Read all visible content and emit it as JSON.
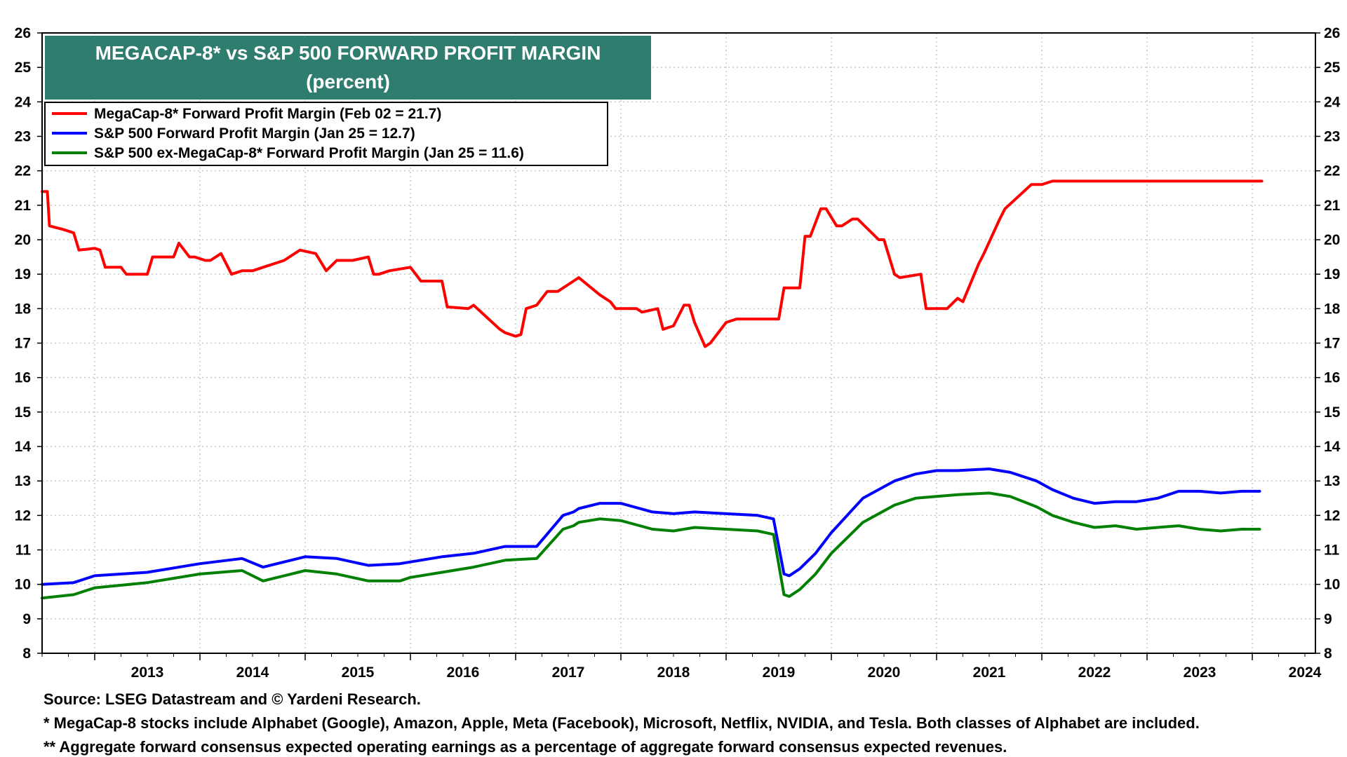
{
  "chart_data": {
    "type": "line",
    "title": "MEGACAP-8* vs S&P 500 FORWARD PROFIT MARGIN",
    "subtitle": "(percent)",
    "ylim": [
      8,
      26
    ],
    "yticks": [
      8,
      9,
      10,
      11,
      12,
      13,
      14,
      15,
      16,
      17,
      18,
      19,
      20,
      21,
      22,
      23,
      24,
      25,
      26
    ],
    "xlim": [
      2012.5,
      2024.6
    ],
    "xtick_labels": [
      "2013",
      "2014",
      "2015",
      "2016",
      "2017",
      "2018",
      "2019",
      "2020",
      "2021",
      "2022",
      "2023",
      "2024"
    ],
    "grid": true,
    "legend_position": "top-left",
    "series": [
      {
        "name": "MegaCap-8* Forward Profit Margin (Feb 02 = 21.7)",
        "color": "#ff0000",
        "x": [
          2012.5,
          2012.55,
          2012.57,
          2012.7,
          2012.8,
          2012.85,
          2013.0,
          2013.05,
          2013.1,
          2013.25,
          2013.3,
          2013.5,
          2013.55,
          2013.75,
          2013.8,
          2013.9,
          2013.95,
          2014.05,
          2014.1,
          2014.2,
          2014.3,
          2014.4,
          2014.45,
          2014.5,
          2014.6,
          2014.8,
          2014.95,
          2015.1,
          2015.2,
          2015.3,
          2015.4,
          2015.45,
          2015.6,
          2015.65,
          2015.7,
          2015.8,
          2016.0,
          2016.1,
          2016.15,
          2016.3,
          2016.35,
          2016.55,
          2016.6,
          2016.85,
          2016.9,
          2017.0,
          2017.05,
          2017.1,
          2017.2,
          2017.3,
          2017.4,
          2017.55,
          2017.6,
          2017.8,
          2017.9,
          2017.95,
          2018.0,
          2018.15,
          2018.2,
          2018.35,
          2018.4,
          2018.5,
          2018.6,
          2018.65,
          2018.7,
          2018.8,
          2018.85,
          2019.0,
          2019.1,
          2019.3,
          2019.5,
          2019.55,
          2019.7,
          2019.75,
          2019.8,
          2019.9,
          2019.95,
          2020.05,
          2020.1,
          2020.2,
          2020.25,
          2020.45,
          2020.5,
          2020.6,
          2020.65,
          2020.85,
          2020.9,
          2021.05,
          2021.1,
          2021.2,
          2021.25,
          2021.4,
          2021.45,
          2021.6,
          2021.65,
          2021.9,
          2022.0,
          2022.1,
          2022.2,
          2022.25,
          2022.4,
          2022.45,
          2022.55,
          2022.75,
          2022.85,
          2022.95,
          2023.0,
          2023.05,
          2023.15,
          2023.25,
          2023.35,
          2023.4,
          2023.55,
          2023.65,
          2023.75,
          2023.82,
          2023.9,
          2024.0,
          2024.09
        ],
        "y": [
          21.4,
          21.4,
          20.4,
          20.3,
          20.2,
          19.7,
          19.75,
          19.7,
          19.2,
          19.2,
          19.0,
          19.0,
          19.5,
          19.5,
          19.9,
          19.5,
          19.5,
          19.4,
          19.4,
          19.6,
          19.0,
          19.1,
          19.1,
          19.1,
          19.2,
          19.4,
          19.7,
          19.6,
          19.1,
          19.4,
          19.4,
          19.4,
          19.5,
          19.0,
          19.0,
          19.1,
          19.2,
          18.8,
          18.8,
          18.8,
          18.05,
          18.0,
          18.1,
          17.4,
          17.3,
          17.2,
          17.25,
          18.0,
          18.1,
          18.5,
          18.5,
          18.8,
          18.9,
          18.4,
          18.2,
          18.0,
          18.0,
          18.0,
          17.9,
          18.0,
          17.4,
          17.5,
          18.1,
          18.1,
          17.6,
          16.9,
          17.0,
          17.6,
          17.7,
          17.7,
          17.7,
          18.6,
          18.6,
          20.1,
          20.1,
          20.9,
          20.9,
          20.4,
          20.4,
          20.6,
          20.6,
          20.0,
          20.0,
          19.0,
          18.9,
          19.0,
          18.0,
          18.0,
          18.0,
          18.3,
          18.2,
          19.3,
          19.6,
          20.6,
          20.9,
          21.6,
          21.6,
          21.7,
          21.7,
          21.7,
          21.7,
          21.7,
          21.7,
          21.7,
          21.7,
          21.7,
          21.7,
          21.7,
          21.7,
          21.7,
          21.7,
          21.7,
          21.7,
          21.7,
          21.7,
          21.7,
          21.7,
          21.7,
          21.7
        ]
      },
      {
        "name": "S&P 500 Forward Profit Margin (Jan 25 = 12.7)",
        "color": "#0000ff",
        "x": [
          2012.5,
          2012.8,
          2013.0,
          2013.5,
          2014.0,
          2014.4,
          2014.6,
          2014.8,
          2015.0,
          2015.3,
          2015.6,
          2015.9,
          2016.0,
          2016.3,
          2016.6,
          2016.9,
          2017.2,
          2017.45,
          2017.55,
          2017.6,
          2017.8,
          2018.0,
          2018.3,
          2018.5,
          2018.7,
          2019.0,
          2019.3,
          2019.45,
          2019.55,
          2019.6,
          2019.7,
          2019.85,
          2020.0,
          2020.3,
          2020.6,
          2020.8,
          2021.0,
          2021.2,
          2021.5,
          2021.7,
          2021.95,
          2022.1,
          2022.3,
          2022.5,
          2022.7,
          2022.9,
          2023.1,
          2023.3,
          2023.5,
          2023.7,
          2023.9,
          2024.07
        ],
        "y": [
          10.0,
          10.05,
          10.25,
          10.35,
          10.6,
          10.75,
          10.5,
          10.65,
          10.8,
          10.75,
          10.55,
          10.6,
          10.65,
          10.8,
          10.9,
          11.1,
          11.1,
          12.0,
          12.1,
          12.2,
          12.35,
          12.35,
          12.1,
          12.05,
          12.1,
          12.05,
          12.0,
          11.9,
          10.3,
          10.25,
          10.45,
          10.9,
          11.5,
          12.5,
          13.0,
          13.2,
          13.3,
          13.3,
          13.35,
          13.25,
          13.0,
          12.75,
          12.5,
          12.35,
          12.4,
          12.4,
          12.5,
          12.7,
          12.7,
          12.65,
          12.7,
          12.7
        ]
      },
      {
        "name": "S&P 500 ex-MegaCap-8* Forward Profit Margin (Jan 25 = 11.6)",
        "color": "#008000",
        "x": [
          2012.5,
          2012.8,
          2013.0,
          2013.5,
          2014.0,
          2014.4,
          2014.6,
          2014.8,
          2015.0,
          2015.3,
          2015.6,
          2015.9,
          2016.0,
          2016.3,
          2016.6,
          2016.9,
          2017.2,
          2017.45,
          2017.55,
          2017.6,
          2017.8,
          2018.0,
          2018.3,
          2018.5,
          2018.7,
          2019.0,
          2019.3,
          2019.45,
          2019.55,
          2019.6,
          2019.7,
          2019.85,
          2020.0,
          2020.3,
          2020.6,
          2020.8,
          2021.0,
          2021.2,
          2021.5,
          2021.7,
          2021.95,
          2022.1,
          2022.3,
          2022.5,
          2022.7,
          2022.9,
          2023.1,
          2023.3,
          2023.5,
          2023.7,
          2023.9,
          2024.07
        ],
        "y": [
          9.6,
          9.7,
          9.9,
          10.05,
          10.3,
          10.4,
          10.1,
          10.25,
          10.4,
          10.3,
          10.1,
          10.1,
          10.2,
          10.35,
          10.5,
          10.7,
          10.75,
          11.6,
          11.7,
          11.8,
          11.9,
          11.85,
          11.6,
          11.55,
          11.65,
          11.6,
          11.55,
          11.45,
          9.7,
          9.65,
          9.85,
          10.3,
          10.9,
          11.8,
          12.3,
          12.5,
          12.55,
          12.6,
          12.65,
          12.55,
          12.25,
          12.0,
          11.8,
          11.65,
          11.7,
          11.6,
          11.65,
          11.7,
          11.6,
          11.55,
          11.6,
          11.6
        ]
      }
    ]
  },
  "footnotes": {
    "source": "Source: LSEG Datastream and © Yardeni Research.",
    "note1": "* MegaCap-8 stocks include Alphabet (Google), Amazon, Apple, Meta (Facebook), Microsoft, Netflix, NVIDIA, and Tesla. Both classes of Alphabet are included.",
    "note2": "** Aggregate forward consensus expected operating earnings as a percentage of aggregate forward consensus expected revenues."
  },
  "colors": {
    "title_box": "#2e7d6e",
    "grid": "#c8c8c8"
  }
}
